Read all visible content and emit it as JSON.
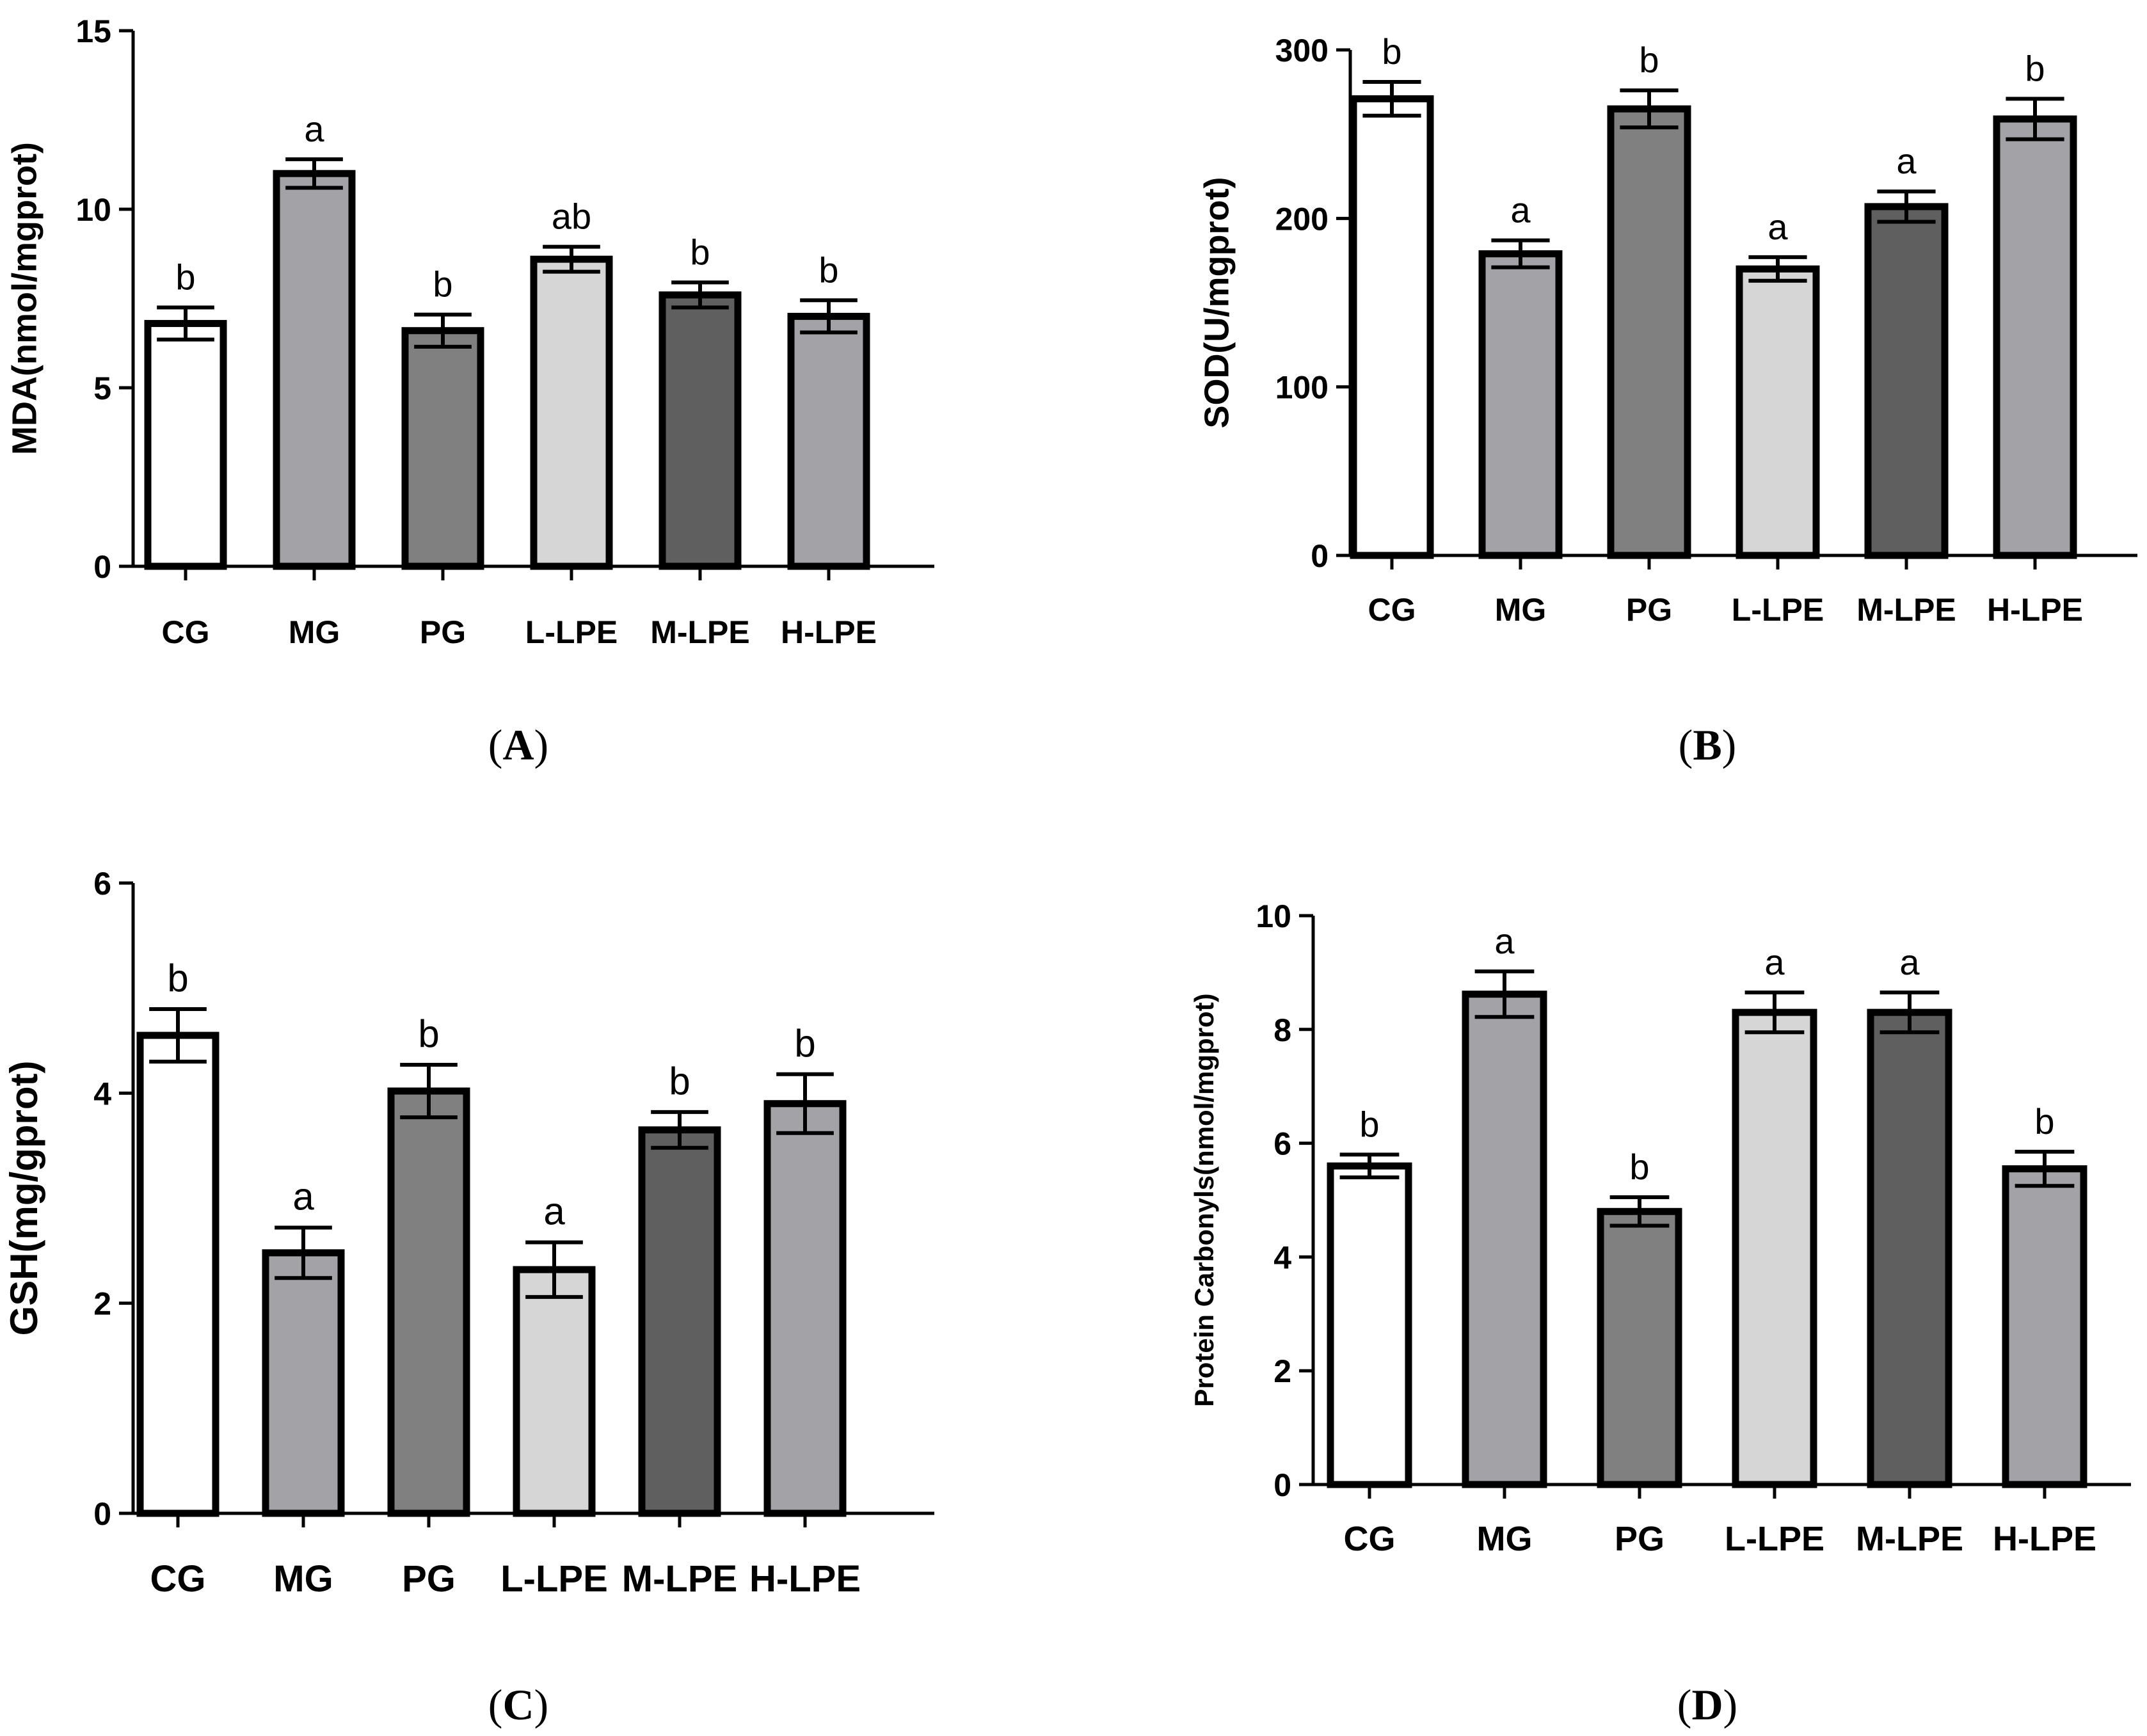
{
  "colors": {
    "CG": "#ffffff",
    "MG": "#a3a3a7",
    "PG": "#808080",
    "L-LPE": "#d6d6d6",
    "M-LPE": "#5f5f5f",
    "H-LPE": "#a3a3a7"
  },
  "chart_data": [
    {
      "id": "A",
      "type": "bar",
      "panel_label": "A",
      "ylabel": "MDA(nmol/mgprot)",
      "ylim": [
        0,
        15
      ],
      "yticks": [
        0,
        5,
        10,
        15
      ],
      "categories": [
        "CG",
        "MG",
        "PG",
        "L-LPE",
        "M-LPE",
        "H-LPE"
      ],
      "values": [
        6.8,
        11.0,
        6.6,
        8.6,
        7.6,
        7.0
      ],
      "errors": [
        0.45,
        0.4,
        0.45,
        0.35,
        0.35,
        0.45
      ],
      "significance": [
        "b",
        "a",
        "b",
        "ab",
        "b",
        "b"
      ]
    },
    {
      "id": "B",
      "type": "bar",
      "panel_label": "B",
      "ylabel": "SOD(U/mgprot)",
      "ylim": [
        0,
        300
      ],
      "yticks": [
        0,
        100,
        200,
        300
      ],
      "categories": [
        "CG",
        "MG",
        "PG",
        "L-LPE",
        "M-LPE",
        "H-LPE"
      ],
      "values": [
        271,
        179,
        265,
        170,
        207,
        259
      ],
      "errors": [
        10,
        8,
        11,
        7,
        9,
        12
      ],
      "significance": [
        "b",
        "a",
        "b",
        "a",
        "a",
        "b"
      ]
    },
    {
      "id": "C",
      "type": "bar",
      "panel_label": "C",
      "ylabel": "GSH(mg/gprot)",
      "ylim": [
        0,
        6
      ],
      "yticks": [
        0,
        2,
        4,
        6
      ],
      "categories": [
        "CG",
        "MG",
        "PG",
        "L-LPE",
        "M-LPE",
        "H-LPE"
      ],
      "values": [
        4.55,
        2.48,
        4.02,
        2.32,
        3.65,
        3.9
      ],
      "errors": [
        0.25,
        0.24,
        0.25,
        0.26,
        0.17,
        0.28
      ],
      "significance": [
        "b",
        "a",
        "b",
        "a",
        "b",
        "b"
      ]
    },
    {
      "id": "D",
      "type": "bar",
      "panel_label": "D",
      "ylabel": "Protein Carbonyls(nmol/mgprot)",
      "ylim": [
        0,
        10
      ],
      "yticks": [
        0,
        2,
        4,
        6,
        8,
        10
      ],
      "categories": [
        "CG",
        "MG",
        "PG",
        "L-LPE",
        "M-LPE",
        "H-LPE"
      ],
      "values": [
        5.6,
        8.62,
        4.8,
        8.3,
        8.3,
        5.55
      ],
      "errors": [
        0.2,
        0.4,
        0.25,
        0.35,
        0.35,
        0.3
      ],
      "significance": [
        "b",
        "a",
        "b",
        "a",
        "a",
        "b"
      ]
    }
  ]
}
